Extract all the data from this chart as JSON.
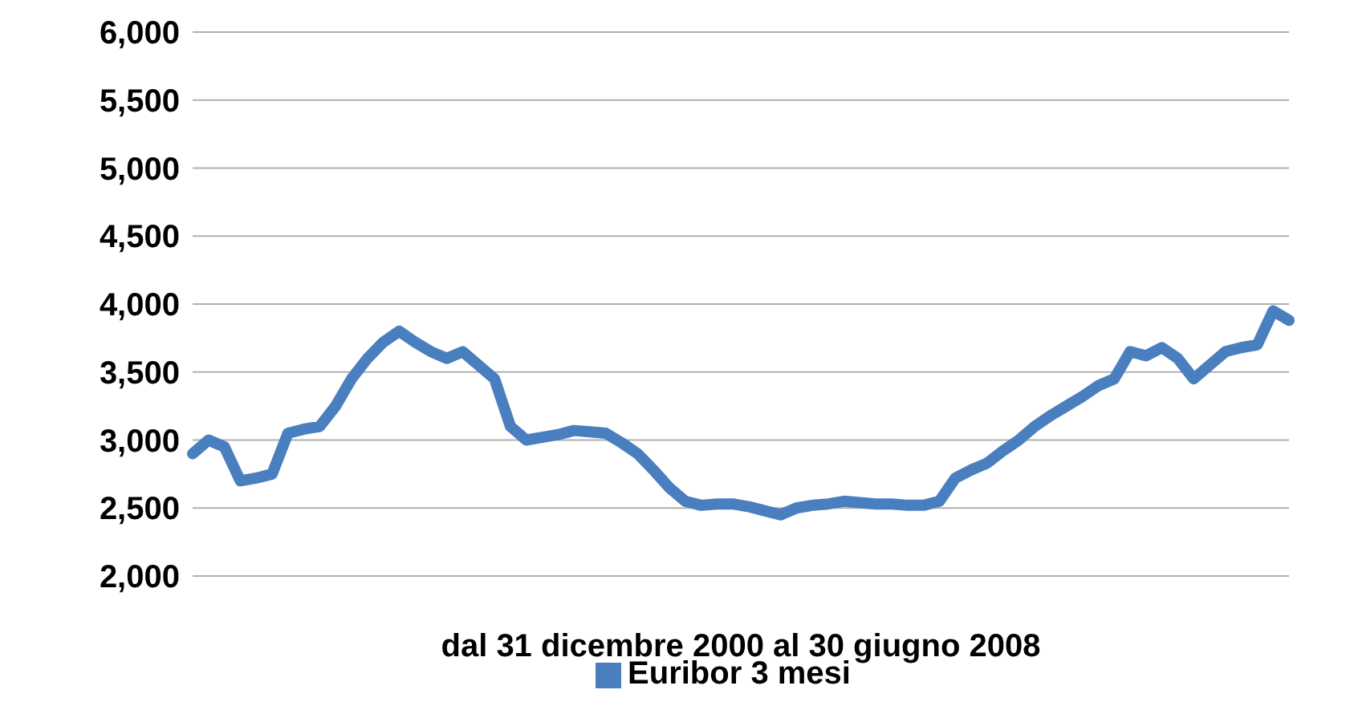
{
  "chart_data": {
    "type": "line",
    "xlabel": "dal 31 dicembre 2000 al 30 giugno 2008",
    "categories": [
      null,
      null,
      null,
      null,
      null,
      null,
      null,
      null,
      null,
      null,
      null,
      null,
      null,
      null,
      null,
      null,
      null,
      null,
      null,
      null,
      null,
      null,
      null,
      null,
      null,
      null,
      null,
      null,
      null,
      null,
      null,
      null,
      null,
      null,
      null,
      null,
      null,
      null,
      null,
      null,
      null,
      null,
      null,
      null,
      null,
      null,
      null,
      null,
      null,
      null,
      null,
      null,
      null,
      null,
      null,
      null,
      null,
      null,
      null,
      null,
      null,
      null,
      null,
      null,
      null,
      null,
      null,
      null,
      null,
      null
    ],
    "series": [
      {
        "name": "Euribor 3 mesi",
        "color": "#4a7fbf",
        "values": [
          2900,
          3000,
          2950,
          2700,
          2720,
          2750,
          3050,
          3080,
          3100,
          3250,
          3450,
          3600,
          3720,
          3800,
          3720,
          3650,
          3600,
          3650,
          3550,
          3450,
          3100,
          3000,
          3020,
          3040,
          3070,
          3060,
          3050,
          2980,
          2900,
          2780,
          2650,
          2550,
          2520,
          2530,
          2530,
          2510,
          2480,
          2450,
          2500,
          2520,
          2530,
          2550,
          2540,
          2530,
          2530,
          2520,
          2520,
          2550,
          2720,
          2780,
          2830,
          2920,
          3000,
          3100,
          3180,
          3250,
          3320,
          3400,
          3450,
          3650,
          3620,
          3680,
          3600,
          3450,
          3550,
          3650,
          3680,
          3700,
          3950,
          3880
        ]
      }
    ],
    "ylim": [
      2000,
      6000
    ],
    "yticks": [
      {
        "value": 2000,
        "label": "2,000"
      },
      {
        "value": 2500,
        "label": "2,500"
      },
      {
        "value": 3000,
        "label": "3,000"
      },
      {
        "value": 3500,
        "label": "3,500"
      },
      {
        "value": 4000,
        "label": "4,000"
      },
      {
        "value": 4500,
        "label": "4,500"
      },
      {
        "value": 5000,
        "label": "5,000"
      },
      {
        "value": 5500,
        "label": "5,500"
      },
      {
        "value": 6000,
        "label": "6,000"
      }
    ],
    "grid": "y",
    "legend": "bottom",
    "marker": "none",
    "line_style": "solid"
  }
}
